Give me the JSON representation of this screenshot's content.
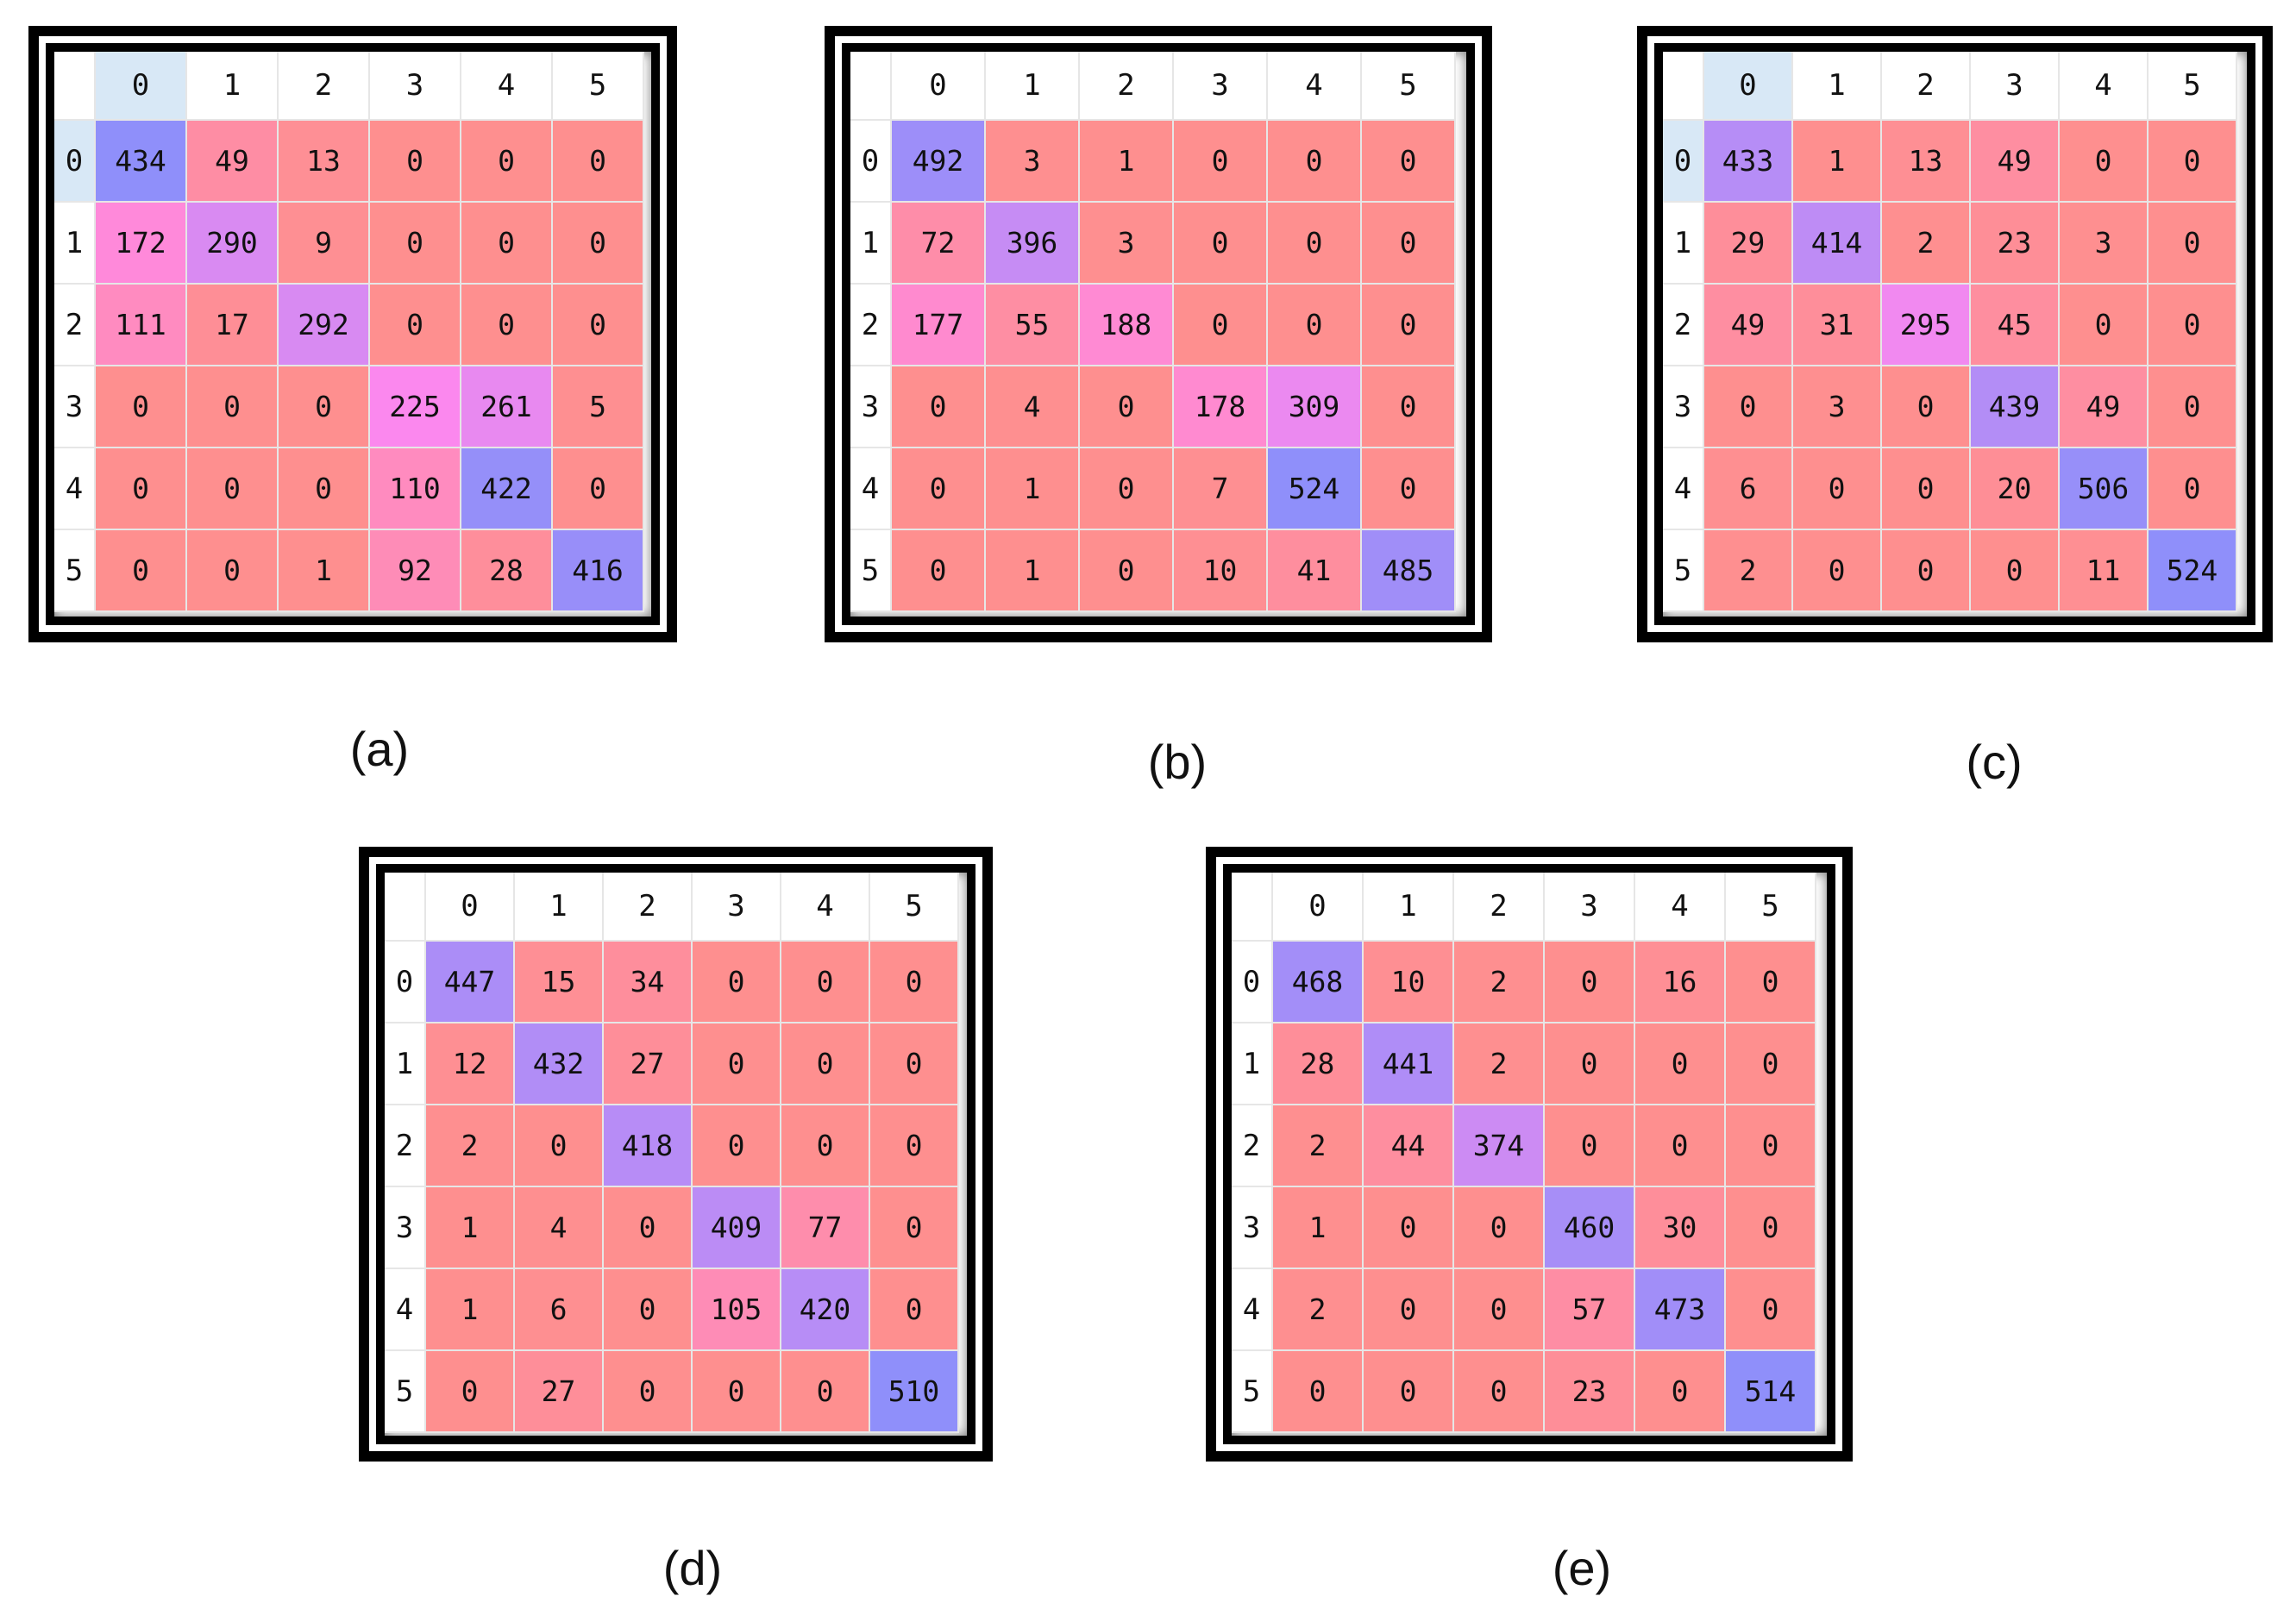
{
  "colors": {
    "min": "#fe8f8f",
    "mid": "#ff88ee",
    "max": "#8f8ffa",
    "header_selected": "#d8e8f6"
  },
  "chart_data": [
    {
      "type": "heatmap",
      "caption": "(a)",
      "x_labels": [
        "0",
        "1",
        "2",
        "3",
        "4",
        "5"
      ],
      "y_labels": [
        "0",
        "1",
        "2",
        "3",
        "4",
        "5"
      ],
      "values": [
        [
          434,
          49,
          13,
          0,
          0,
          0
        ],
        [
          172,
          290,
          9,
          0,
          0,
          0
        ],
        [
          111,
          17,
          292,
          0,
          0,
          0
        ],
        [
          0,
          0,
          0,
          225,
          261,
          5
        ],
        [
          0,
          0,
          0,
          110,
          422,
          0
        ],
        [
          0,
          0,
          1,
          92,
          28,
          416
        ]
      ]
    },
    {
      "type": "heatmap",
      "caption": "(b)",
      "x_labels": [
        "0",
        "1",
        "2",
        "3",
        "4",
        "5"
      ],
      "y_labels": [
        "0",
        "1",
        "2",
        "3",
        "4",
        "5"
      ],
      "values": [
        [
          492,
          3,
          1,
          0,
          0,
          0
        ],
        [
          72,
          396,
          3,
          0,
          0,
          0
        ],
        [
          177,
          55,
          188,
          0,
          0,
          0
        ],
        [
          0,
          4,
          0,
          178,
          309,
          0
        ],
        [
          0,
          1,
          0,
          7,
          524,
          0
        ],
        [
          0,
          1,
          0,
          10,
          41,
          485
        ]
      ]
    },
    {
      "type": "heatmap",
      "caption": "(c)",
      "x_labels": [
        "0",
        "1",
        "2",
        "3",
        "4",
        "5"
      ],
      "y_labels": [
        "0",
        "1",
        "2",
        "3",
        "4",
        "5"
      ],
      "values": [
        [
          433,
          1,
          13,
          49,
          0,
          0
        ],
        [
          29,
          414,
          2,
          23,
          3,
          0
        ],
        [
          49,
          31,
          295,
          45,
          0,
          0
        ],
        [
          0,
          3,
          0,
          439,
          49,
          0
        ],
        [
          6,
          0,
          0,
          20,
          506,
          0
        ],
        [
          2,
          0,
          0,
          0,
          11,
          524
        ]
      ]
    },
    {
      "type": "heatmap",
      "caption": "(d)",
      "x_labels": [
        "0",
        "1",
        "2",
        "3",
        "4",
        "5"
      ],
      "y_labels": [
        "0",
        "1",
        "2",
        "3",
        "4",
        "5"
      ],
      "values": [
        [
          447,
          15,
          34,
          0,
          0,
          0
        ],
        [
          12,
          432,
          27,
          0,
          0,
          0
        ],
        [
          2,
          0,
          418,
          0,
          0,
          0
        ],
        [
          1,
          4,
          0,
          409,
          77,
          0
        ],
        [
          1,
          6,
          0,
          105,
          420,
          0
        ],
        [
          0,
          27,
          0,
          0,
          0,
          510
        ]
      ]
    },
    {
      "type": "heatmap",
      "caption": "(e)",
      "x_labels": [
        "0",
        "1",
        "2",
        "3",
        "4",
        "5"
      ],
      "y_labels": [
        "0",
        "1",
        "2",
        "3",
        "4",
        "5"
      ],
      "values": [
        [
          468,
          10,
          2,
          0,
          16,
          0
        ],
        [
          28,
          441,
          2,
          0,
          0,
          0
        ],
        [
          2,
          44,
          374,
          0,
          0,
          0
        ],
        [
          1,
          0,
          0,
          460,
          30,
          0
        ],
        [
          2,
          0,
          0,
          57,
          473,
          0
        ],
        [
          0,
          0,
          0,
          23,
          0,
          514
        ]
      ]
    }
  ]
}
